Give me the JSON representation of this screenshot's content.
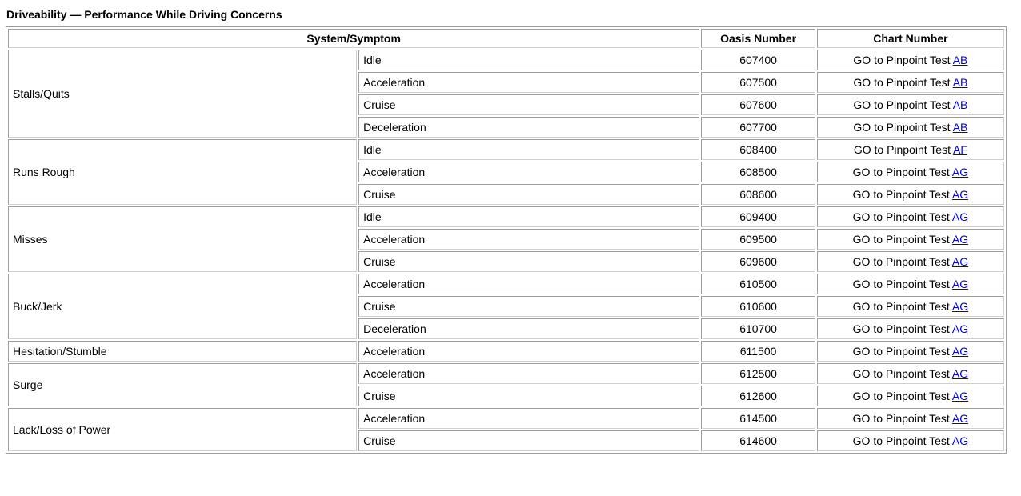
{
  "title": "Driveability — Performance While Driving Concerns",
  "colors": {
    "link_blue": "#0000ee",
    "border_gray": "#9e9e9e",
    "text": "#000000"
  },
  "table": {
    "headers": {
      "system_symptom": "System/Symptom",
      "oasis": "Oasis Number",
      "chart": "Chart Number"
    },
    "chart_link_prefix": "GO to Pinpoint Test",
    "groups": [
      {
        "system": "Stalls/Quits",
        "rows": [
          {
            "symptom": "Idle",
            "oasis": "607400",
            "chart_link": "AB"
          },
          {
            "symptom": "Acceleration",
            "oasis": "607500",
            "chart_link": "AB"
          },
          {
            "symptom": "Cruise",
            "oasis": "607600",
            "chart_link": "AB"
          },
          {
            "symptom": "Deceleration",
            "oasis": "607700",
            "chart_link": "AB"
          }
        ]
      },
      {
        "system": "Runs Rough",
        "rows": [
          {
            "symptom": "Idle",
            "oasis": "608400",
            "chart_link": "AF"
          },
          {
            "symptom": "Acceleration",
            "oasis": "608500",
            "chart_link": "AG"
          },
          {
            "symptom": "Cruise",
            "oasis": "608600",
            "chart_link": "AG"
          }
        ]
      },
      {
        "system": "Misses",
        "rows": [
          {
            "symptom": "Idle",
            "oasis": "609400",
            "chart_link": "AG"
          },
          {
            "symptom": "Acceleration",
            "oasis": "609500",
            "chart_link": "AG"
          },
          {
            "symptom": "Cruise",
            "oasis": "609600",
            "chart_link": "AG"
          }
        ]
      },
      {
        "system": "Buck/Jerk",
        "rows": [
          {
            "symptom": "Acceleration",
            "oasis": "610500",
            "chart_link": "AG"
          },
          {
            "symptom": "Cruise",
            "oasis": "610600",
            "chart_link": "AG"
          },
          {
            "symptom": "Deceleration",
            "oasis": "610700",
            "chart_link": "AG"
          }
        ]
      },
      {
        "system": "Hesitation/Stumble",
        "rows": [
          {
            "symptom": "Acceleration",
            "oasis": "611500",
            "chart_link": "AG"
          }
        ]
      },
      {
        "system": "Surge",
        "rows": [
          {
            "symptom": "Acceleration",
            "oasis": "612500",
            "chart_link": "AG"
          },
          {
            "symptom": "Cruise",
            "oasis": "612600",
            "chart_link": "AG"
          }
        ]
      },
      {
        "system": "Lack/Loss of Power",
        "rows": [
          {
            "symptom": "Acceleration",
            "oasis": "614500",
            "chart_link": "AG"
          },
          {
            "symptom": "Cruise",
            "oasis": "614600",
            "chart_link": "AG"
          }
        ]
      }
    ]
  }
}
